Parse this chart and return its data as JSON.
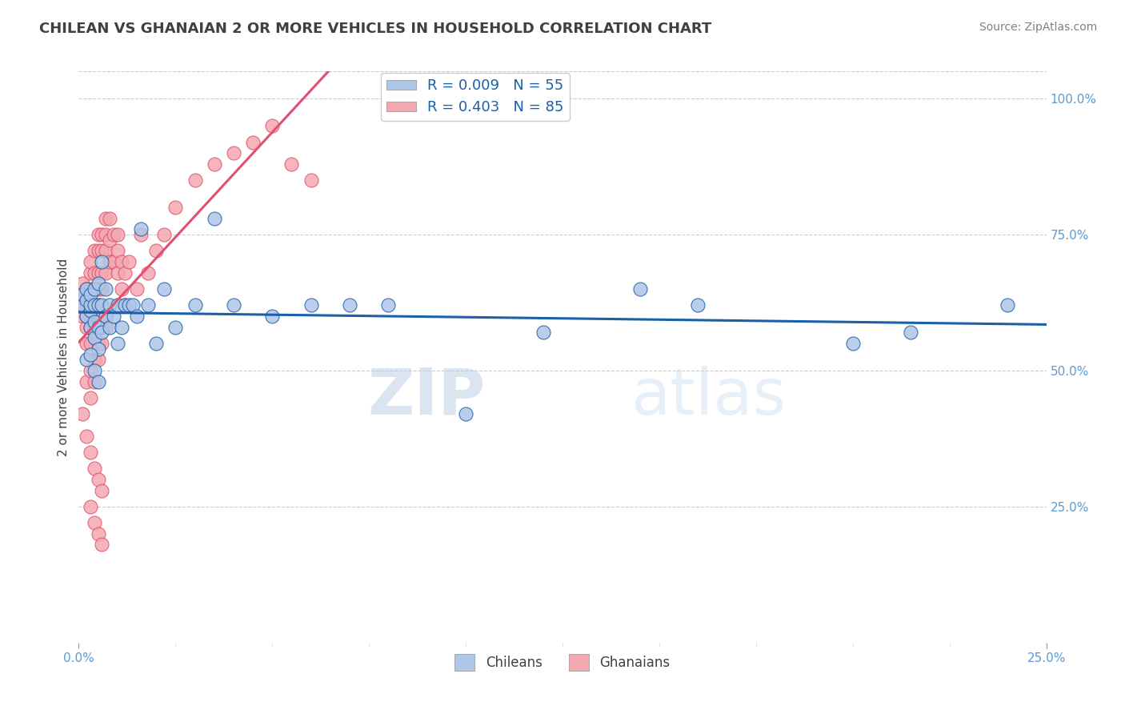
{
  "title": "CHILEAN VS GHANAIAN 2 OR MORE VEHICLES IN HOUSEHOLD CORRELATION CHART",
  "source": "Source: ZipAtlas.com",
  "ylabel": "2 or more Vehicles in Household",
  "xlim": [
    0.0,
    0.25
  ],
  "ylim": [
    0.0,
    1.05
  ],
  "xtick_labels_bottom": [
    "0.0%",
    "25.0%"
  ],
  "xtick_values_bottom": [
    0.0,
    0.25
  ],
  "xtick_minor_values": [
    0.025,
    0.05,
    0.075,
    0.1,
    0.125,
    0.15,
    0.175,
    0.2,
    0.225
  ],
  "ytick_labels": [
    "25.0%",
    "50.0%",
    "75.0%",
    "100.0%"
  ],
  "ytick_values": [
    0.25,
    0.5,
    0.75,
    1.0
  ],
  "grid_color": "#cccccc",
  "background_color": "#ffffff",
  "title_color": "#404040",
  "title_fontsize": 13,
  "source_fontsize": 10,
  "source_color": "#808080",
  "chilean_color": "#aec6e8",
  "ghanaian_color": "#f4a8b0",
  "chilean_line_color": "#1a5fa8",
  "ghanaian_line_color": "#e05070",
  "chilean_R": 0.009,
  "chilean_N": 55,
  "ghanaian_R": 0.403,
  "ghanaian_N": 85,
  "legend_fontsize": 13,
  "watermark_zip": "ZIP",
  "watermark_atlas": "atlas",
  "chilean_x": [
    0.001,
    0.001,
    0.002,
    0.002,
    0.002,
    0.003,
    0.003,
    0.003,
    0.003,
    0.004,
    0.004,
    0.004,
    0.004,
    0.005,
    0.005,
    0.005,
    0.005,
    0.006,
    0.006,
    0.006,
    0.007,
    0.007,
    0.008,
    0.008,
    0.009,
    0.01,
    0.01,
    0.011,
    0.012,
    0.013,
    0.014,
    0.015,
    0.016,
    0.018,
    0.02,
    0.022,
    0.025,
    0.03,
    0.035,
    0.04,
    0.05,
    0.06,
    0.07,
    0.08,
    0.1,
    0.12,
    0.145,
    0.16,
    0.2,
    0.215,
    0.24,
    0.002,
    0.003,
    0.004,
    0.005
  ],
  "chilean_y": [
    0.62,
    0.64,
    0.6,
    0.63,
    0.65,
    0.58,
    0.61,
    0.62,
    0.64,
    0.56,
    0.59,
    0.62,
    0.65,
    0.54,
    0.58,
    0.62,
    0.66,
    0.57,
    0.62,
    0.7,
    0.6,
    0.65,
    0.58,
    0.62,
    0.6,
    0.55,
    0.62,
    0.58,
    0.62,
    0.62,
    0.62,
    0.6,
    0.76,
    0.62,
    0.55,
    0.65,
    0.58,
    0.62,
    0.78,
    0.62,
    0.6,
    0.62,
    0.62,
    0.62,
    0.42,
    0.57,
    0.65,
    0.62,
    0.55,
    0.57,
    0.62,
    0.52,
    0.53,
    0.5,
    0.48
  ],
  "ghanaian_x": [
    0.001,
    0.001,
    0.001,
    0.001,
    0.002,
    0.002,
    0.002,
    0.002,
    0.002,
    0.003,
    0.003,
    0.003,
    0.003,
    0.003,
    0.003,
    0.004,
    0.004,
    0.004,
    0.004,
    0.004,
    0.005,
    0.005,
    0.005,
    0.005,
    0.005,
    0.005,
    0.006,
    0.006,
    0.006,
    0.006,
    0.006,
    0.007,
    0.007,
    0.007,
    0.007,
    0.008,
    0.008,
    0.008,
    0.009,
    0.009,
    0.01,
    0.01,
    0.01,
    0.011,
    0.011,
    0.012,
    0.012,
    0.013,
    0.015,
    0.016,
    0.018,
    0.02,
    0.022,
    0.025,
    0.03,
    0.035,
    0.04,
    0.045,
    0.05,
    0.055,
    0.06,
    0.001,
    0.002,
    0.003,
    0.004,
    0.005,
    0.006,
    0.007,
    0.003,
    0.004,
    0.005,
    0.006,
    0.007,
    0.002,
    0.003,
    0.004,
    0.005,
    0.006,
    0.003,
    0.004,
    0.005,
    0.006,
    0.002,
    0.003,
    0.004
  ],
  "ghanaian_y": [
    0.62,
    0.64,
    0.66,
    0.6,
    0.6,
    0.63,
    0.65,
    0.58,
    0.55,
    0.65,
    0.68,
    0.7,
    0.62,
    0.58,
    0.55,
    0.68,
    0.72,
    0.65,
    0.62,
    0.58,
    0.72,
    0.75,
    0.68,
    0.65,
    0.62,
    0.58,
    0.75,
    0.72,
    0.68,
    0.65,
    0.6,
    0.78,
    0.75,
    0.72,
    0.68,
    0.78,
    0.74,
    0.7,
    0.75,
    0.7,
    0.75,
    0.72,
    0.68,
    0.7,
    0.65,
    0.68,
    0.62,
    0.7,
    0.65,
    0.75,
    0.68,
    0.72,
    0.75,
    0.8,
    0.85,
    0.88,
    0.9,
    0.92,
    0.95,
    0.88,
    0.85,
    0.42,
    0.48,
    0.5,
    0.52,
    0.55,
    0.58,
    0.6,
    0.45,
    0.48,
    0.52,
    0.55,
    0.58,
    0.38,
    0.35,
    0.32,
    0.3,
    0.28,
    0.25,
    0.22,
    0.2,
    0.18,
    0.62,
    0.6,
    0.57
  ]
}
